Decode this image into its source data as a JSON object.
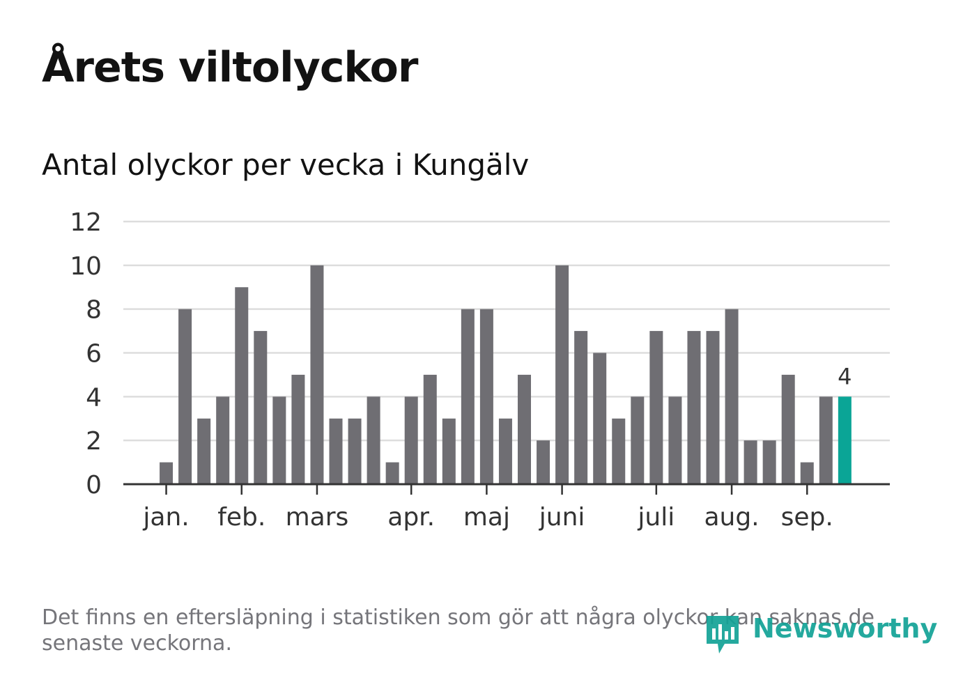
{
  "title": "Årets viltolyckor",
  "subtitle": "Antal olyckor per vecka i Kungälv",
  "footnote": "Det finns en eftersläpning i statistiken som gör att några olyckor kan saknas de senaste veckorna.",
  "brand": {
    "name": "Newsworthy",
    "icon": "newsworthy-logo-icon",
    "color": "#12a296"
  },
  "colors": {
    "bar": "#6f6e73",
    "highlight": "#0aa596",
    "grid": "#dddddd",
    "axis": "#333333"
  },
  "chart_data": {
    "type": "bar",
    "title": "Antal olyckor per vecka i Kungälv",
    "xlabel": "",
    "ylabel": "",
    "ylim": [
      0,
      12
    ],
    "yticks": [
      0,
      2,
      4,
      6,
      8,
      10,
      12
    ],
    "grid": true,
    "categories": [
      1,
      2,
      3,
      4,
      5,
      6,
      7,
      8,
      9,
      10,
      11,
      12,
      13,
      14,
      15,
      16,
      17,
      18,
      19,
      20,
      21,
      22,
      23,
      24,
      25,
      26,
      27,
      28,
      29,
      30,
      31,
      32,
      33,
      34,
      35,
      36,
      37,
      38
    ],
    "values": [
      0,
      1,
      8,
      3,
      4,
      9,
      7,
      4,
      5,
      10,
      3,
      3,
      4,
      1,
      4,
      5,
      3,
      8,
      8,
      3,
      5,
      2,
      10,
      7,
      6,
      3,
      4,
      7,
      4,
      7,
      7,
      8,
      2,
      2,
      5,
      1,
      4,
      4
    ],
    "highlight_index": 37,
    "highlight_label": "4",
    "month_ticks": [
      {
        "label": "jan.",
        "pos": 1
      },
      {
        "label": "feb.",
        "pos": 5
      },
      {
        "label": "mars",
        "pos": 9
      },
      {
        "label": "apr.",
        "pos": 14
      },
      {
        "label": "maj",
        "pos": 18
      },
      {
        "label": "juni",
        "pos": 22
      },
      {
        "label": "juli",
        "pos": 27
      },
      {
        "label": "aug.",
        "pos": 31
      },
      {
        "label": "sep.",
        "pos": 35
      }
    ]
  }
}
